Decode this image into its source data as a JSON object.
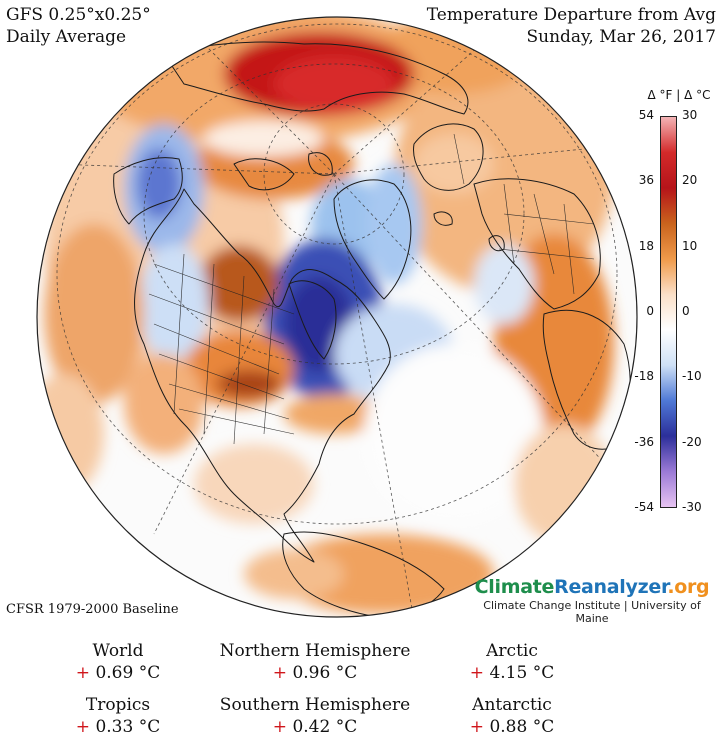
{
  "header": {
    "model_line": "GFS 0.25°x0.25°",
    "period_line": "Daily Average",
    "title_line": "Temperature Departure from Avg",
    "date_line": "Sunday, Mar 26, 2017"
  },
  "colorbar": {
    "header": "Δ °F  |  Δ °C",
    "f_labels": [
      "54",
      "36",
      "18",
      "0",
      "-18",
      "-36",
      "-54"
    ],
    "c_labels": [
      "30",
      "20",
      "10",
      "0",
      "-10",
      "-20",
      "-30"
    ],
    "colors": [
      "#e7c4f2",
      "#9b7ad6",
      "#2c2f9a",
      "#4f79d6",
      "#cfe1f6",
      "#ffffff",
      "#fbe0c8",
      "#ef9a4a",
      "#c9631d",
      "#b5141a",
      "#d32a2a",
      "#f4b4b6"
    ]
  },
  "baseline": "CFSR 1979-2000 Baseline",
  "brand": {
    "logo_part1": "Climate",
    "logo_part2": "Reanalyzer",
    "logo_part3": ".org",
    "subtitle": "Climate Change Institute | University of Maine",
    "colors": {
      "part1": "#1e8e4c",
      "part2": "#1f74b8",
      "part3": "#f0901e"
    }
  },
  "stats": [
    {
      "name": "World",
      "sign": "+",
      "value": "0.69 °C"
    },
    {
      "name": "Northern Hemisphere",
      "sign": "+",
      "value": "0.96 °C"
    },
    {
      "name": "Arctic",
      "sign": "+",
      "value": "4.15 °C"
    },
    {
      "name": "Tropics",
      "sign": "+",
      "value": "0.33 °C"
    },
    {
      "name": "Southern Hemisphere",
      "sign": "+",
      "value": "0.42 °C"
    },
    {
      "name": "Antarctic",
      "sign": "+",
      "value": "0.88 °C"
    }
  ]
}
